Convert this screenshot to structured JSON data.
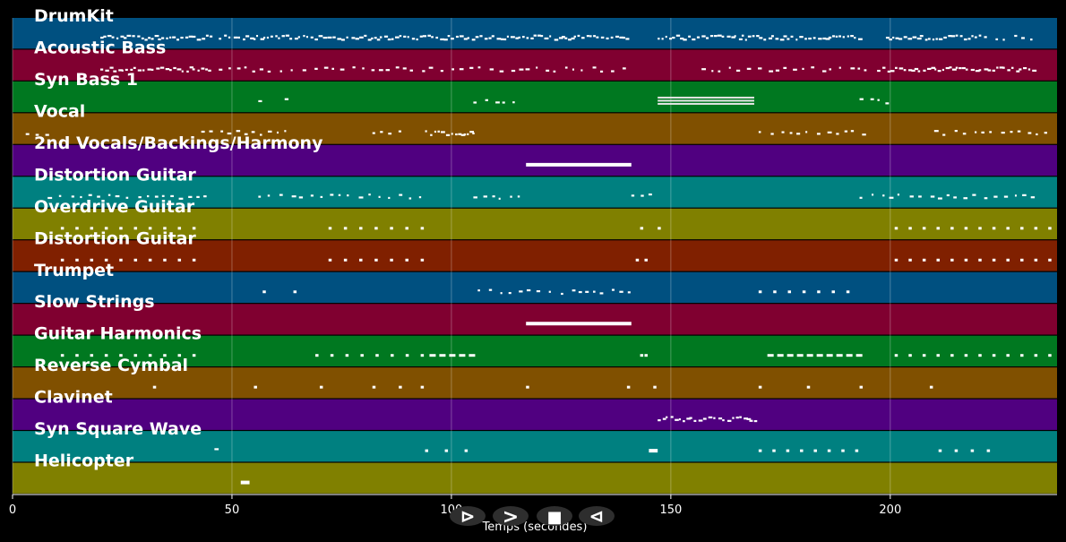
{
  "chart_data": {
    "type": "piano-roll",
    "xlabel": "Temps (secondes)",
    "xlim": [
      0,
      238
    ],
    "x_ticks": [
      0,
      50,
      100,
      150,
      200
    ],
    "grid": true,
    "tracks": [
      {
        "name": "DrumKit",
        "color": "#005080",
        "notes": [
          [
            20,
            45,
            "dense"
          ],
          [
            47,
            90,
            "dense"
          ],
          [
            91,
            140,
            "dense"
          ],
          [
            147,
            193,
            "dense"
          ],
          [
            199,
            222,
            "dense"
          ],
          [
            224,
            232,
            "sparse"
          ]
        ]
      },
      {
        "name": "Acoustic Bass",
        "color": "#800030",
        "notes": [
          [
            20,
            45,
            "dense"
          ],
          [
            47,
            70,
            "sparse"
          ],
          [
            71,
            140,
            "sparse"
          ],
          [
            157,
            196,
            "sparse"
          ],
          [
            197,
            233,
            "dense"
          ]
        ]
      },
      {
        "name": "Syn Bass 1",
        "color": "#007820",
        "notes": [
          [
            56,
            58,
            "sparse"
          ],
          [
            62,
            64,
            "sparse"
          ],
          [
            105,
            116,
            "sparse"
          ],
          [
            147,
            169,
            "block"
          ],
          [
            193,
            199,
            "sparse"
          ]
        ]
      },
      {
        "name": "Vocal",
        "color": "#805000",
        "notes": [
          [
            3,
            8,
            "sparse"
          ],
          [
            43,
            64,
            "sparse"
          ],
          [
            82,
            90,
            "sparse"
          ],
          [
            94,
            105,
            "dense"
          ],
          [
            170,
            194,
            "sparse"
          ],
          [
            210,
            236,
            "sparse"
          ]
        ]
      },
      {
        "name": "2nd Vocals/Backings/Harmony",
        "color": "#500080",
        "notes": [
          [
            117,
            141,
            "bar"
          ]
        ]
      },
      {
        "name": "Distortion Guitar",
        "color": "#008080",
        "notes": [
          [
            8,
            45,
            "sparse"
          ],
          [
            56,
            93,
            "sparse"
          ],
          [
            105,
            116,
            "sparse"
          ],
          [
            141,
            146,
            "sparse"
          ],
          [
            193,
            234,
            "sparse"
          ]
        ]
      },
      {
        "name": "Overdrive Guitar",
        "color": "#808000",
        "notes": [
          [
            11,
            41,
            "dots"
          ],
          [
            72,
            93,
            "dots"
          ],
          [
            143,
            147,
            "dots"
          ],
          [
            201,
            236,
            "dots"
          ]
        ]
      },
      {
        "name": "Distortion Guitar",
        "color": "#802000",
        "notes": [
          [
            11,
            41,
            "dots"
          ],
          [
            72,
            93,
            "dots"
          ],
          [
            142,
            144,
            "dots"
          ],
          [
            201,
            236,
            "dots"
          ]
        ]
      },
      {
        "name": "Trumpet",
        "color": "#005080",
        "notes": [
          [
            57,
            64,
            "dots"
          ],
          [
            106,
            141,
            "sparse"
          ],
          [
            170,
            190,
            "dots"
          ]
        ]
      },
      {
        "name": "Slow Strings",
        "color": "#800030",
        "notes": [
          [
            117,
            141,
            "bar"
          ]
        ]
      },
      {
        "name": "Guitar Harmonics",
        "color": "#007820",
        "notes": [
          [
            11,
            41,
            "dots"
          ],
          [
            69,
            93,
            "dots"
          ],
          [
            95,
            105,
            "dashes"
          ],
          [
            143,
            144,
            "dots"
          ],
          [
            172,
            193,
            "dashes"
          ],
          [
            201,
            236,
            "dots"
          ]
        ]
      },
      {
        "name": "Reverse Cymbal",
        "color": "#805000",
        "notes": [
          [
            32,
            32,
            "dots"
          ],
          [
            55,
            55,
            "dots"
          ],
          [
            70,
            70,
            "dots"
          ],
          [
            82,
            82,
            "dots"
          ],
          [
            88,
            88,
            "dots"
          ],
          [
            93,
            93,
            "dots"
          ],
          [
            117,
            117,
            "dots"
          ],
          [
            140,
            140,
            "dots"
          ],
          [
            146,
            146,
            "dots"
          ],
          [
            170,
            170,
            "dots"
          ],
          [
            181,
            181,
            "dots"
          ],
          [
            193,
            193,
            "dots"
          ],
          [
            209,
            209,
            "dots"
          ]
        ]
      },
      {
        "name": "Clavinet",
        "color": "#500080",
        "notes": [
          [
            147,
            169,
            "dense"
          ]
        ]
      },
      {
        "name": "Syn Square Wave",
        "color": "#008080",
        "notes": [
          [
            46,
            48,
            "sparse"
          ],
          [
            94,
            103,
            "dots"
          ],
          [
            145,
            147,
            "bar"
          ],
          [
            170,
            192,
            "dots"
          ],
          [
            211,
            222,
            "dots"
          ]
        ]
      },
      {
        "name": "Helicopter",
        "color": "#808000",
        "notes": [
          [
            52,
            54,
            "bar"
          ]
        ]
      }
    ]
  },
  "controls": {
    "play_label": "⊳",
    "forward_label": ">",
    "stop_label": "■",
    "rewind_label": "⊲"
  }
}
